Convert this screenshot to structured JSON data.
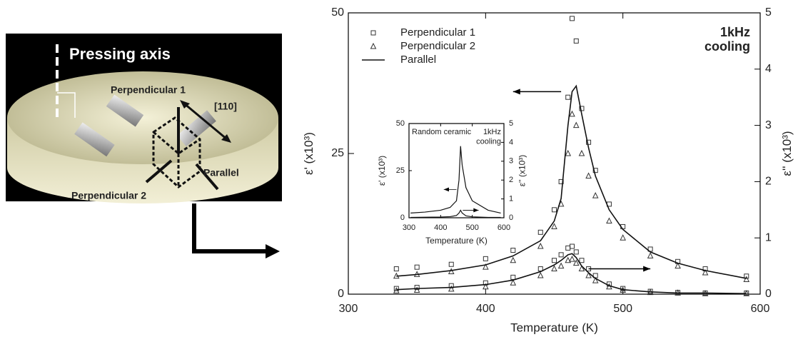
{
  "diagram": {
    "labels": [
      "Pressing axis",
      "Perpendicular 1",
      "[110]",
      "Parallel",
      "Perpendicular 2"
    ]
  },
  "chart_data": [
    {
      "type": "scatter",
      "xlabel": "Temperature (K)",
      "ylabel": "ε' (x10³)",
      "y2label": "ε'' (x10³)",
      "annotation": [
        "1kHz",
        "cooling"
      ],
      "x": [
        335,
        350,
        375,
        400,
        420,
        440,
        450,
        455,
        460,
        463,
        466,
        470,
        475,
        480,
        490,
        500,
        520,
        540,
        560,
        590
      ],
      "series": [
        {
          "name": "Perpendicular 1",
          "marker": "square",
          "color": "#333333",
          "values": [
            4.5,
            4.8,
            5.3,
            6.3,
            7.8,
            11,
            15,
            20,
            35,
            49,
            45,
            33,
            27,
            22,
            16,
            12,
            8,
            5.8,
            4.5,
            3.2
          ],
          "loss_values": [
            0.1,
            0.12,
            0.15,
            0.2,
            0.3,
            0.45,
            0.6,
            0.7,
            0.82,
            0.85,
            0.75,
            0.6,
            0.45,
            0.33,
            0.18,
            0.1,
            0.05,
            0.03,
            0.02,
            0.02
          ]
        },
        {
          "name": "Perpendicular 2",
          "marker": "triangle",
          "color": "#333333",
          "values": [
            3.2,
            3.5,
            4,
            4.8,
            6,
            8.5,
            12,
            16,
            25,
            32,
            30,
            25,
            21,
            17.5,
            13,
            10,
            6.8,
            5,
            3.8,
            2.6
          ],
          "loss_values": [
            0.06,
            0.07,
            0.09,
            0.13,
            0.2,
            0.33,
            0.45,
            0.5,
            0.6,
            0.62,
            0.55,
            0.45,
            0.33,
            0.24,
            0.13,
            0.07,
            0.03,
            0.02,
            0.01,
            0.01
          ]
        },
        {
          "name": "Parallel",
          "marker": "line",
          "color": "#111111",
          "values": [
            3.2,
            3.5,
            4.2,
            5.2,
            6.8,
            9.5,
            13,
            17,
            30,
            36,
            37,
            32,
            26,
            21,
            15,
            11.5,
            7.5,
            5.5,
            4.2,
            2.8
          ],
          "loss_values": [
            0.08,
            0.1,
            0.12,
            0.17,
            0.25,
            0.4,
            0.52,
            0.6,
            0.7,
            0.72,
            0.65,
            0.5,
            0.38,
            0.28,
            0.15,
            0.08,
            0.04,
            0.02,
            0.02,
            0.01
          ]
        }
      ],
      "xlim": [
        300,
        600
      ],
      "xticks": [
        300,
        400,
        500,
        600
      ],
      "ylim": [
        0,
        50
      ],
      "yticks": [
        0,
        25,
        50
      ],
      "y2lim": [
        0,
        5
      ],
      "y2ticks": [
        0,
        1,
        2,
        3,
        4,
        5
      ],
      "legend": "upper left"
    },
    {
      "type": "line",
      "title": "Random ceramic",
      "xlabel": "Temperature (K)",
      "ylabel": "ε' (x10³)",
      "y2label": "ε'' (x10³)",
      "annotation": [
        "1kHz",
        "cooling"
      ],
      "x": [
        305,
        350,
        400,
        430,
        450,
        458,
        463,
        468,
        480,
        500,
        550,
        590
      ],
      "series": [
        {
          "marker": "line",
          "color": "#111111",
          "values": [
            2.5,
            3,
            4,
            5.5,
            9,
            20,
            38,
            28,
            16,
            9,
            4,
            2.5
          ],
          "loss_values": [
            0.02,
            0.03,
            0.04,
            0.06,
            0.12,
            0.25,
            0.4,
            0.25,
            0.1,
            0.05,
            0.02,
            0.02
          ]
        }
      ],
      "xlim": [
        300,
        600
      ],
      "xticks": [
        300,
        400,
        500,
        600
      ],
      "ylim": [
        0,
        50
      ],
      "yticks": [
        0,
        25,
        50
      ],
      "y2lim": [
        0,
        5
      ],
      "y2ticks": [
        0,
        1,
        2,
        3,
        4,
        5
      ]
    }
  ]
}
